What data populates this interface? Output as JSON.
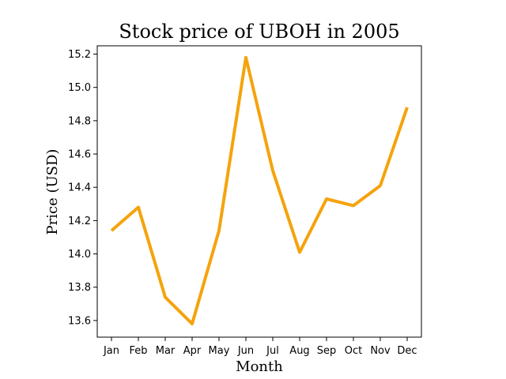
{
  "chart_data": {
    "type": "line",
    "title": "Stock price of UBOH in 2005",
    "xlabel": "Month",
    "ylabel": "Price (USD)",
    "categories": [
      "Jan",
      "Feb",
      "Mar",
      "Apr",
      "May",
      "Jun",
      "Jul",
      "Aug",
      "Sep",
      "Oct",
      "Nov",
      "Dec"
    ],
    "series": [
      {
        "values": [
          14.14,
          14.28,
          13.74,
          13.58,
          14.14,
          15.18,
          14.5,
          14.01,
          14.33,
          14.29,
          14.41,
          14.88
        ],
        "color": "#f5a30d"
      }
    ],
    "ylim": [
      13.5,
      15.25
    ],
    "yticks": [
      "13.6",
      "13.8",
      "14.0",
      "14.2",
      "14.4",
      "14.6",
      "14.8",
      "15.0",
      "15.2"
    ],
    "grid": false,
    "legend": "none"
  }
}
